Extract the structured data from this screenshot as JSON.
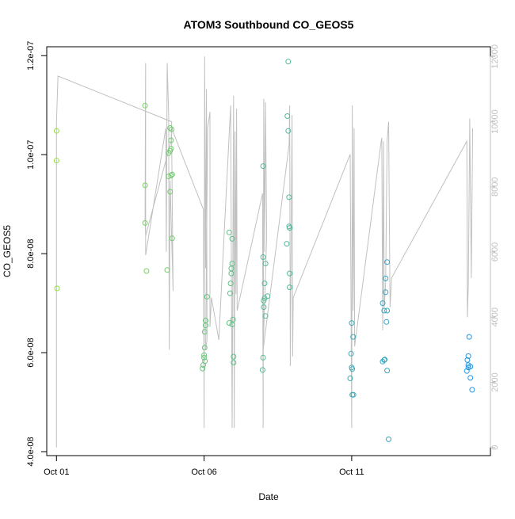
{
  "chart_data": {
    "type": "scatter",
    "title": "ATOM3 Southbound CO_GEOS5",
    "xlabel": "Date",
    "ylabel": "CO_GEOS5",
    "x_ticks": [
      "Oct 01",
      "Oct 06",
      "Oct 11"
    ],
    "y_ticks": [
      "4.0e-08",
      "6.0e-08",
      "8.0e-08",
      "1.0e-07",
      "1.2e-07"
    ],
    "y_tick_values": [
      4e-08,
      6e-08,
      8e-08,
      1e-07,
      1.2e-07
    ],
    "y_right_ticks": [
      "0",
      "2000",
      "4000",
      "6000",
      "8000",
      "10000",
      "12000"
    ],
    "y_right_tick_values": [
      0,
      2000,
      4000,
      6000,
      8000,
      10000,
      12000
    ],
    "xlim_days": [
      -0.33,
      14.7
    ],
    "ylim": [
      3.92e-08,
      1.218e-07
    ],
    "y_right_lim": [
      -250,
      12300
    ],
    "x_tick_days": [
      0,
      5,
      10
    ],
    "colors": {
      "scatter_from": "#8fe040",
      "scatter_to": "#1f96e6",
      "altitude_line": "#c0c0c0"
    },
    "points": [
      {
        "d": 0.0,
        "v": 1.048e-07
      },
      {
        "d": 0.0,
        "v": 9.88e-08
      },
      {
        "d": 0.02,
        "v": 7.3e-08
      },
      {
        "d": 3.0,
        "v": 1.099e-07
      },
      {
        "d": 3.0,
        "v": 9.38e-08
      },
      {
        "d": 3.0,
        "v": 8.62e-08
      },
      {
        "d": 3.05,
        "v": 7.65e-08
      },
      {
        "d": 3.75,
        "v": 7.67e-08
      },
      {
        "d": 3.8,
        "v": 1.003e-07
      },
      {
        "d": 3.8,
        "v": 9.56e-08
      },
      {
        "d": 3.85,
        "v": 9.25e-08
      },
      {
        "d": 3.85,
        "v": 1.054e-07
      },
      {
        "d": 3.85,
        "v": 1.008e-07
      },
      {
        "d": 3.88,
        "v": 1.029e-07
      },
      {
        "d": 3.88,
        "v": 1.012e-07
      },
      {
        "d": 3.9,
        "v": 1.051e-07
      },
      {
        "d": 3.92,
        "v": 9.6e-08
      },
      {
        "d": 3.92,
        "v": 8.31e-08
      },
      {
        "d": 3.88,
        "v": 9.58e-08
      },
      {
        "d": 4.95,
        "v": 5.68e-08
      },
      {
        "d": 4.97,
        "v": 5.75e-08
      },
      {
        "d": 5.0,
        "v": 5.9e-08
      },
      {
        "d": 5.0,
        "v": 5.95e-08
      },
      {
        "d": 5.02,
        "v": 6.1e-08
      },
      {
        "d": 5.02,
        "v": 6.42e-08
      },
      {
        "d": 5.05,
        "v": 6.55e-08
      },
      {
        "d": 5.05,
        "v": 6.65e-08
      },
      {
        "d": 5.1,
        "v": 7.13e-08
      },
      {
        "d": 5.03,
        "v": 5.83e-08
      },
      {
        "d": 5.85,
        "v": 8.43e-08
      },
      {
        "d": 5.85,
        "v": 6.6e-08
      },
      {
        "d": 5.88,
        "v": 7.2e-08
      },
      {
        "d": 5.9,
        "v": 7.4e-08
      },
      {
        "d": 5.92,
        "v": 7.6e-08
      },
      {
        "d": 5.92,
        "v": 7.7e-08
      },
      {
        "d": 5.95,
        "v": 7.8e-08
      },
      {
        "d": 5.95,
        "v": 8.3e-08
      },
      {
        "d": 5.95,
        "v": 6.57e-08
      },
      {
        "d": 5.98,
        "v": 6.67e-08
      },
      {
        "d": 6.0,
        "v": 5.8e-08
      },
      {
        "d": 6.0,
        "v": 5.92e-08
      },
      {
        "d": 7.0,
        "v": 9.77e-08
      },
      {
        "d": 7.0,
        "v": 7.93e-08
      },
      {
        "d": 7.02,
        "v": 7.05e-08
      },
      {
        "d": 7.02,
        "v": 6.92e-08
      },
      {
        "d": 7.05,
        "v": 7.1e-08
      },
      {
        "d": 7.05,
        "v": 7.4e-08
      },
      {
        "d": 7.08,
        "v": 7.8e-08
      },
      {
        "d": 7.08,
        "v": 6.74e-08
      },
      {
        "d": 7.15,
        "v": 7.14e-08
      },
      {
        "d": 7.0,
        "v": 5.9e-08
      },
      {
        "d": 6.98,
        "v": 5.65e-08
      },
      {
        "d": 7.85,
        "v": 1.188e-07
      },
      {
        "d": 7.82,
        "v": 1.078e-07
      },
      {
        "d": 7.85,
        "v": 1.048e-07
      },
      {
        "d": 7.88,
        "v": 9.14e-08
      },
      {
        "d": 7.88,
        "v": 8.55e-08
      },
      {
        "d": 7.9,
        "v": 8.52e-08
      },
      {
        "d": 7.8,
        "v": 8.2e-08
      },
      {
        "d": 7.9,
        "v": 7.6e-08
      },
      {
        "d": 7.9,
        "v": 7.32e-08
      },
      {
        "d": 10.0,
        "v": 6.6e-08
      },
      {
        "d": 10.05,
        "v": 6.32e-08
      },
      {
        "d": 9.98,
        "v": 5.98e-08
      },
      {
        "d": 10.0,
        "v": 5.7e-08
      },
      {
        "d": 10.02,
        "v": 5.67e-08
      },
      {
        "d": 9.95,
        "v": 5.48e-08
      },
      {
        "d": 10.02,
        "v": 5.15e-08
      },
      {
        "d": 10.06,
        "v": 5.15e-08
      },
      {
        "d": 11.2,
        "v": 7.83e-08
      },
      {
        "d": 11.15,
        "v": 7.5e-08
      },
      {
        "d": 11.15,
        "v": 7.22e-08
      },
      {
        "d": 11.05,
        "v": 7e-08
      },
      {
        "d": 11.1,
        "v": 6.85e-08
      },
      {
        "d": 11.2,
        "v": 6.85e-08
      },
      {
        "d": 11.18,
        "v": 6.62e-08
      },
      {
        "d": 11.1,
        "v": 5.85e-08
      },
      {
        "d": 11.05,
        "v": 5.82e-08
      },
      {
        "d": 11.12,
        "v": 5.86e-08
      },
      {
        "d": 11.2,
        "v": 5.64e-08
      },
      {
        "d": 11.25,
        "v": 4.25e-08
      },
      {
        "d": 13.98,
        "v": 6.32e-08
      },
      {
        "d": 13.95,
        "v": 5.93e-08
      },
      {
        "d": 13.92,
        "v": 5.85e-08
      },
      {
        "d": 13.95,
        "v": 5.75e-08
      },
      {
        "d": 14.02,
        "v": 5.72e-08
      },
      {
        "d": 13.9,
        "v": 5.63e-08
      },
      {
        "d": 13.95,
        "v": 5.7e-08
      },
      {
        "d": 14.02,
        "v": 5.49e-08
      },
      {
        "d": 14.08,
        "v": 5.25e-08
      }
    ],
    "altitude_line": [
      [
        0.0,
        0
      ],
      [
        0.0,
        10000
      ],
      [
        0.05,
        11400
      ],
      [
        3.9,
        10000
      ],
      [
        3.9,
        9600
      ],
      [
        3.95,
        4800
      ],
      [
        3.85,
        8200
      ],
      [
        3.82,
        3000
      ],
      [
        3.8,
        10200
      ],
      [
        3.75,
        11800
      ],
      [
        3.72,
        6000
      ],
      [
        3.7,
        9800
      ],
      [
        3.02,
        5900
      ],
      [
        3.02,
        11800
      ],
      [
        3.0,
        7000
      ],
      [
        3.02,
        6500
      ],
      [
        3.88,
        9400
      ],
      [
        3.9,
        9800
      ],
      [
        4.98,
        7300
      ],
      [
        5.0,
        600
      ],
      [
        5.02,
        12000
      ],
      [
        5.05,
        5500
      ],
      [
        5.08,
        11000
      ],
      [
        5.1,
        3300
      ],
      [
        5.05,
        3000
      ],
      [
        5.12,
        9800
      ],
      [
        5.2,
        10300
      ],
      [
        5.2,
        3700
      ],
      [
        5.25,
        4600
      ],
      [
        5.5,
        3300
      ],
      [
        5.9,
        10500
      ],
      [
        5.95,
        600
      ],
      [
        6.0,
        10800
      ],
      [
        6.02,
        600
      ],
      [
        6.05,
        9700
      ],
      [
        6.08,
        4700
      ],
      [
        6.1,
        10400
      ],
      [
        6.12,
        4200
      ],
      [
        6.98,
        7800
      ],
      [
        7.0,
        600
      ],
      [
        7.02,
        10700
      ],
      [
        7.05,
        6000
      ],
      [
        7.08,
        10600
      ],
      [
        7.12,
        6500
      ],
      [
        7.0,
        3000
      ],
      [
        7.88,
        9300
      ],
      [
        7.9,
        10500
      ],
      [
        7.92,
        2500
      ],
      [
        7.95,
        6500
      ],
      [
        7.98,
        10200
      ],
      [
        8.0,
        2800
      ],
      [
        8.02,
        4600
      ],
      [
        9.95,
        9000
      ],
      [
        10.0,
        600
      ],
      [
        10.02,
        10500
      ],
      [
        10.05,
        4200
      ],
      [
        10.08,
        9800
      ],
      [
        10.1,
        3100
      ],
      [
        11.0,
        9400
      ],
      [
        11.02,
        9500
      ],
      [
        11.05,
        3600
      ],
      [
        11.08,
        9400
      ],
      [
        11.1,
        4300
      ],
      [
        11.15,
        5000
      ],
      [
        11.2,
        9400
      ],
      [
        11.25,
        10000
      ],
      [
        11.3,
        4300
      ],
      [
        11.35,
        5200
      ],
      [
        13.9,
        9400
      ],
      [
        13.92,
        4000
      ],
      [
        13.95,
        5000
      ],
      [
        14.0,
        10100
      ],
      [
        14.05,
        5200
      ],
      [
        14.1,
        9800
      ]
    ]
  }
}
